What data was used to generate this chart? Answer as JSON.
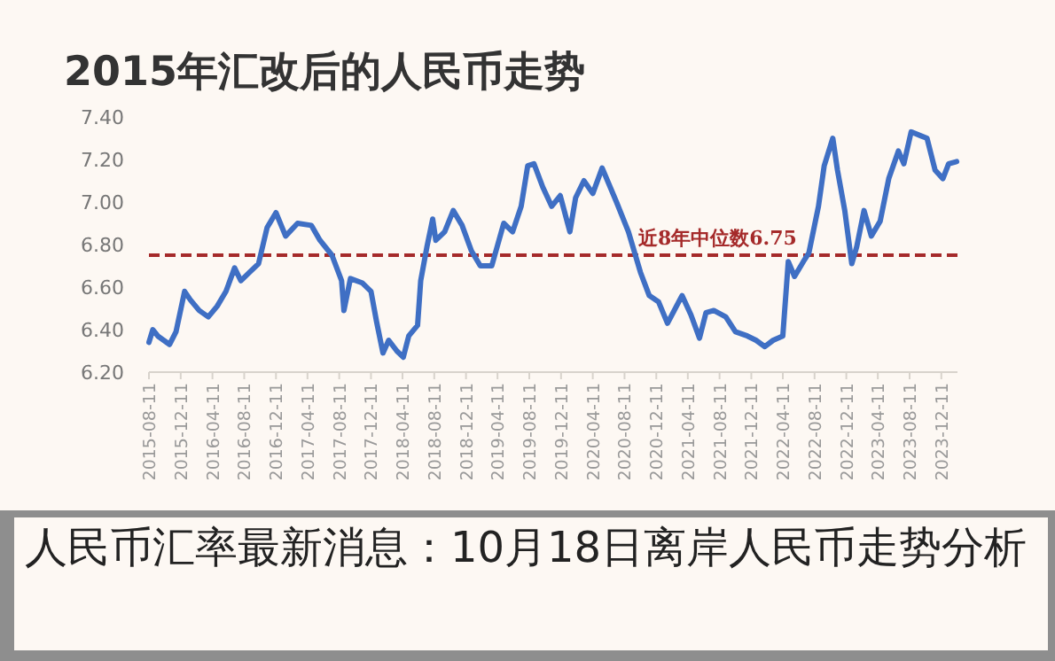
{
  "chart_data": {
    "type": "line",
    "title": "2015年汇改后的人民币走势",
    "x": [
      "2015-08-11",
      "2015-08-26",
      "2015-09-14",
      "2015-10-29",
      "2015-11-23",
      "2015-12-26",
      "2016-01-17",
      "2016-02-20",
      "2016-03-26",
      "2016-04-29",
      "2016-06-02",
      "2016-07-05",
      "2016-07-29",
      "2016-09-01",
      "2016-10-05",
      "2016-11-07",
      "2016-12-11",
      "2017-01-17",
      "2017-03-04",
      "2017-04-26",
      "2017-05-29",
      "2017-07-14",
      "2017-08-20",
      "2017-08-29",
      "2017-09-23",
      "2017-11-07",
      "2017-12-11",
      "2018-01-01",
      "2018-01-26",
      "2018-02-17",
      "2018-03-20",
      "2018-04-14",
      "2018-05-05",
      "2018-06-08",
      "2018-06-20",
      "2018-07-14",
      "2018-08-05",
      "2018-08-17",
      "2018-09-20",
      "2018-10-23",
      "2018-11-26",
      "2019-01-01",
      "2019-02-04",
      "2019-03-20",
      "2019-05-05",
      "2019-06-08",
      "2019-07-11",
      "2019-08-05",
      "2019-08-29",
      "2019-10-02",
      "2019-11-05",
      "2019-12-08",
      "2020-01-14",
      "2020-02-05",
      "2020-03-08",
      "2020-04-11",
      "2020-05-17",
      "2020-07-11",
      "2020-08-26",
      "2020-10-11",
      "2020-11-14",
      "2020-12-20",
      "2021-01-23",
      "2021-03-20",
      "2021-04-23",
      "2021-05-26",
      "2021-06-20",
      "2021-07-20",
      "2021-09-04",
      "2021-10-11",
      "2021-11-26",
      "2021-12-29",
      "2022-02-01",
      "2022-03-05",
      "2022-04-11",
      "2022-05-02",
      "2022-05-26",
      "2022-06-29",
      "2022-07-20",
      "2022-08-26",
      "2022-09-17",
      "2022-10-20",
      "2022-11-07",
      "2022-12-05",
      "2023-01-01",
      "2023-01-20",
      "2023-02-17",
      "2023-03-17",
      "2023-04-20",
      "2023-05-23",
      "2023-06-29",
      "2023-07-20",
      "2023-08-17",
      "2023-09-26",
      "2023-10-17",
      "2023-11-17",
      "2023-12-17",
      "2024-01-08",
      "2024-02-08"
    ],
    "series": [
      {
        "color": "#3f6fc4",
        "values": [
          6.34,
          6.4,
          6.37,
          6.33,
          6.39,
          6.58,
          6.54,
          6.49,
          6.46,
          6.51,
          6.58,
          6.69,
          6.63,
          6.67,
          6.71,
          6.88,
          6.95,
          6.84,
          6.9,
          6.89,
          6.82,
          6.75,
          6.63,
          6.49,
          6.64,
          6.62,
          6.58,
          6.44,
          6.29,
          6.35,
          6.3,
          6.27,
          6.37,
          6.42,
          6.63,
          6.79,
          6.92,
          6.82,
          6.86,
          6.96,
          6.89,
          6.77,
          6.7,
          6.7,
          6.9,
          6.86,
          6.98,
          7.17,
          7.18,
          7.07,
          6.98,
          7.03,
          6.86,
          7.02,
          7.1,
          7.04,
          7.16,
          7.0,
          6.86,
          6.67,
          6.56,
          6.53,
          6.43,
          6.56,
          6.47,
          6.36,
          6.48,
          6.49,
          6.46,
          6.39,
          6.37,
          6.35,
          6.32,
          6.35,
          6.37,
          6.72,
          6.65,
          6.72,
          6.76,
          6.98,
          7.17,
          7.3,
          7.15,
          6.96,
          6.71,
          6.79,
          6.96,
          6.84,
          6.91,
          7.11,
          7.24,
          7.18,
          7.33,
          7.31,
          7.3,
          7.15,
          7.11,
          7.18,
          7.19
        ]
      }
    ],
    "xlim": [
      "2015-08-11",
      "2024-02-11"
    ],
    "xticks": [
      "2015-08-11",
      "2015-12-11",
      "2016-04-11",
      "2016-08-11",
      "2016-12-11",
      "2017-04-11",
      "2017-08-11",
      "2017-12-11",
      "2018-04-11",
      "2018-08-11",
      "2018-12-11",
      "2019-04-11",
      "2019-08-11",
      "2019-12-11",
      "2020-04-11",
      "2020-08-11",
      "2020-12-11",
      "2021-04-11",
      "2021-08-11",
      "2021-12-11",
      "2022-04-11",
      "2022-08-11",
      "2022-12-11",
      "2023-04-11",
      "2023-08-11",
      "2023-12-11"
    ],
    "ylim": [
      6.2,
      7.4
    ],
    "yticks": [
      {
        "value": 6.2,
        "label": "6.20"
      },
      {
        "value": 6.4,
        "label": "6.40"
      },
      {
        "value": 6.6,
        "label": "6.60"
      },
      {
        "value": 6.8,
        "label": "6.80"
      },
      {
        "value": 7.0,
        "label": "7.00"
      },
      {
        "value": 7.2,
        "label": "7.20"
      },
      {
        "value": 7.4,
        "label": "7.40"
      }
    ],
    "ref_lines": [
      {
        "axis": "y",
        "value": 6.75,
        "label": "近8年中位数6.75",
        "color": "#a52a2a",
        "line_style": "dashed"
      }
    ],
    "annotations": [
      "人民币汇率最新消息：10月18日离岸人民币走势分析"
    ],
    "grid": false,
    "marker": "none",
    "line_style": "solid"
  }
}
